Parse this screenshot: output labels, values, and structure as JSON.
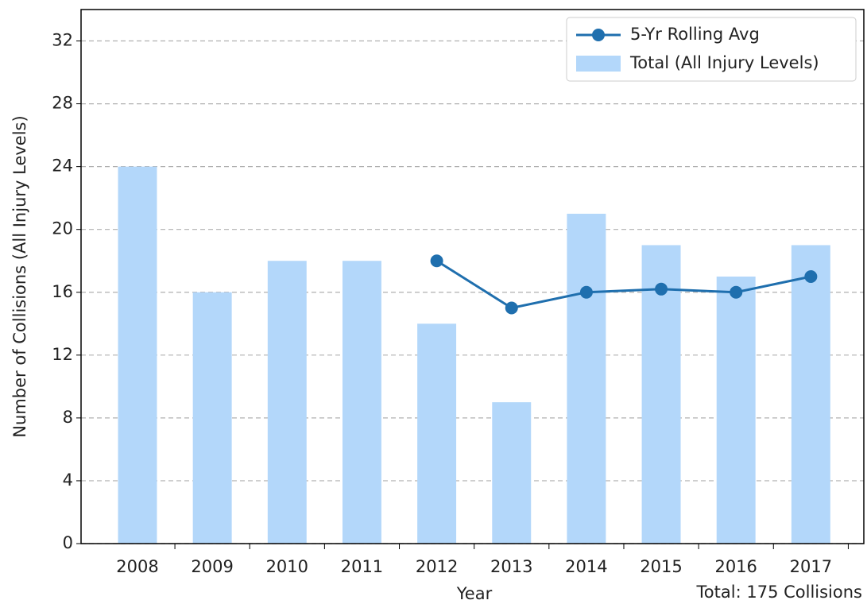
{
  "chart_data": {
    "type": "bar_line",
    "xlabel": "Year",
    "ylabel": "Number of Collisions (All Injury Levels)",
    "annotation": "Total: 175 Collisions",
    "categories": [
      "2008",
      "2009",
      "2010",
      "2011",
      "2012",
      "2013",
      "2014",
      "2015",
      "2016",
      "2017"
    ],
    "series": [
      {
        "name": "Total (All Injury Levels)",
        "type": "bar",
        "color": "#b3d7fa",
        "values": [
          24,
          16,
          18,
          18,
          14,
          9,
          21,
          19,
          17,
          19
        ]
      },
      {
        "name": "5-Yr Rolling Avg",
        "type": "line",
        "color": "#1f6fae",
        "values": [
          null,
          null,
          null,
          null,
          18,
          15,
          16,
          16.2,
          16,
          17
        ]
      }
    ],
    "ylim": [
      0,
      34
    ],
    "yticks": [
      0,
      4,
      8,
      12,
      16,
      20,
      24,
      28,
      32
    ],
    "grid": true,
    "legend": "upper right"
  }
}
